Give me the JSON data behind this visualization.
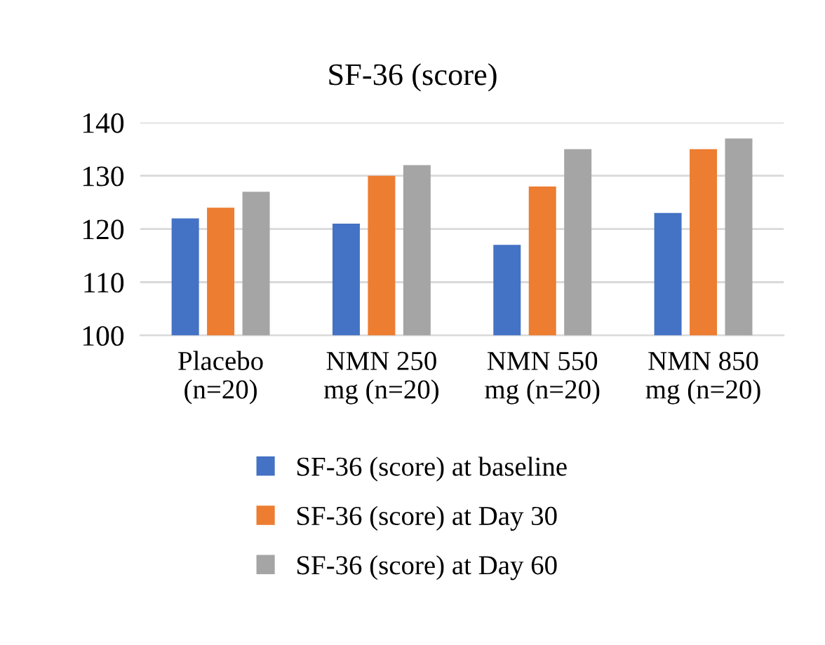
{
  "chart_data": {
    "type": "bar",
    "title": "SF-36 (score)",
    "categories": [
      "Placebo\n(n=20)",
      "NMN 250\nmg (n=20)",
      "NMN 550\nmg (n=20)",
      "NMN 850\nmg (n=20)"
    ],
    "series": [
      {
        "name": "SF-36 (score) at baseline",
        "color": "#4472c4",
        "values": [
          122,
          121,
          117,
          123
        ]
      },
      {
        "name": "SF-36 (score) at Day 30",
        "color": "#ed7d31",
        "values": [
          124,
          130,
          128,
          135
        ]
      },
      {
        "name": "SF-36 (score) at Day 60",
        "color": "#a5a5a5",
        "values": [
          127,
          132,
          135,
          137
        ]
      }
    ],
    "ylim": [
      100,
      140
    ],
    "yticks": [
      100,
      110,
      120,
      130,
      140
    ],
    "grid": "y",
    "legend": "bottom"
  }
}
